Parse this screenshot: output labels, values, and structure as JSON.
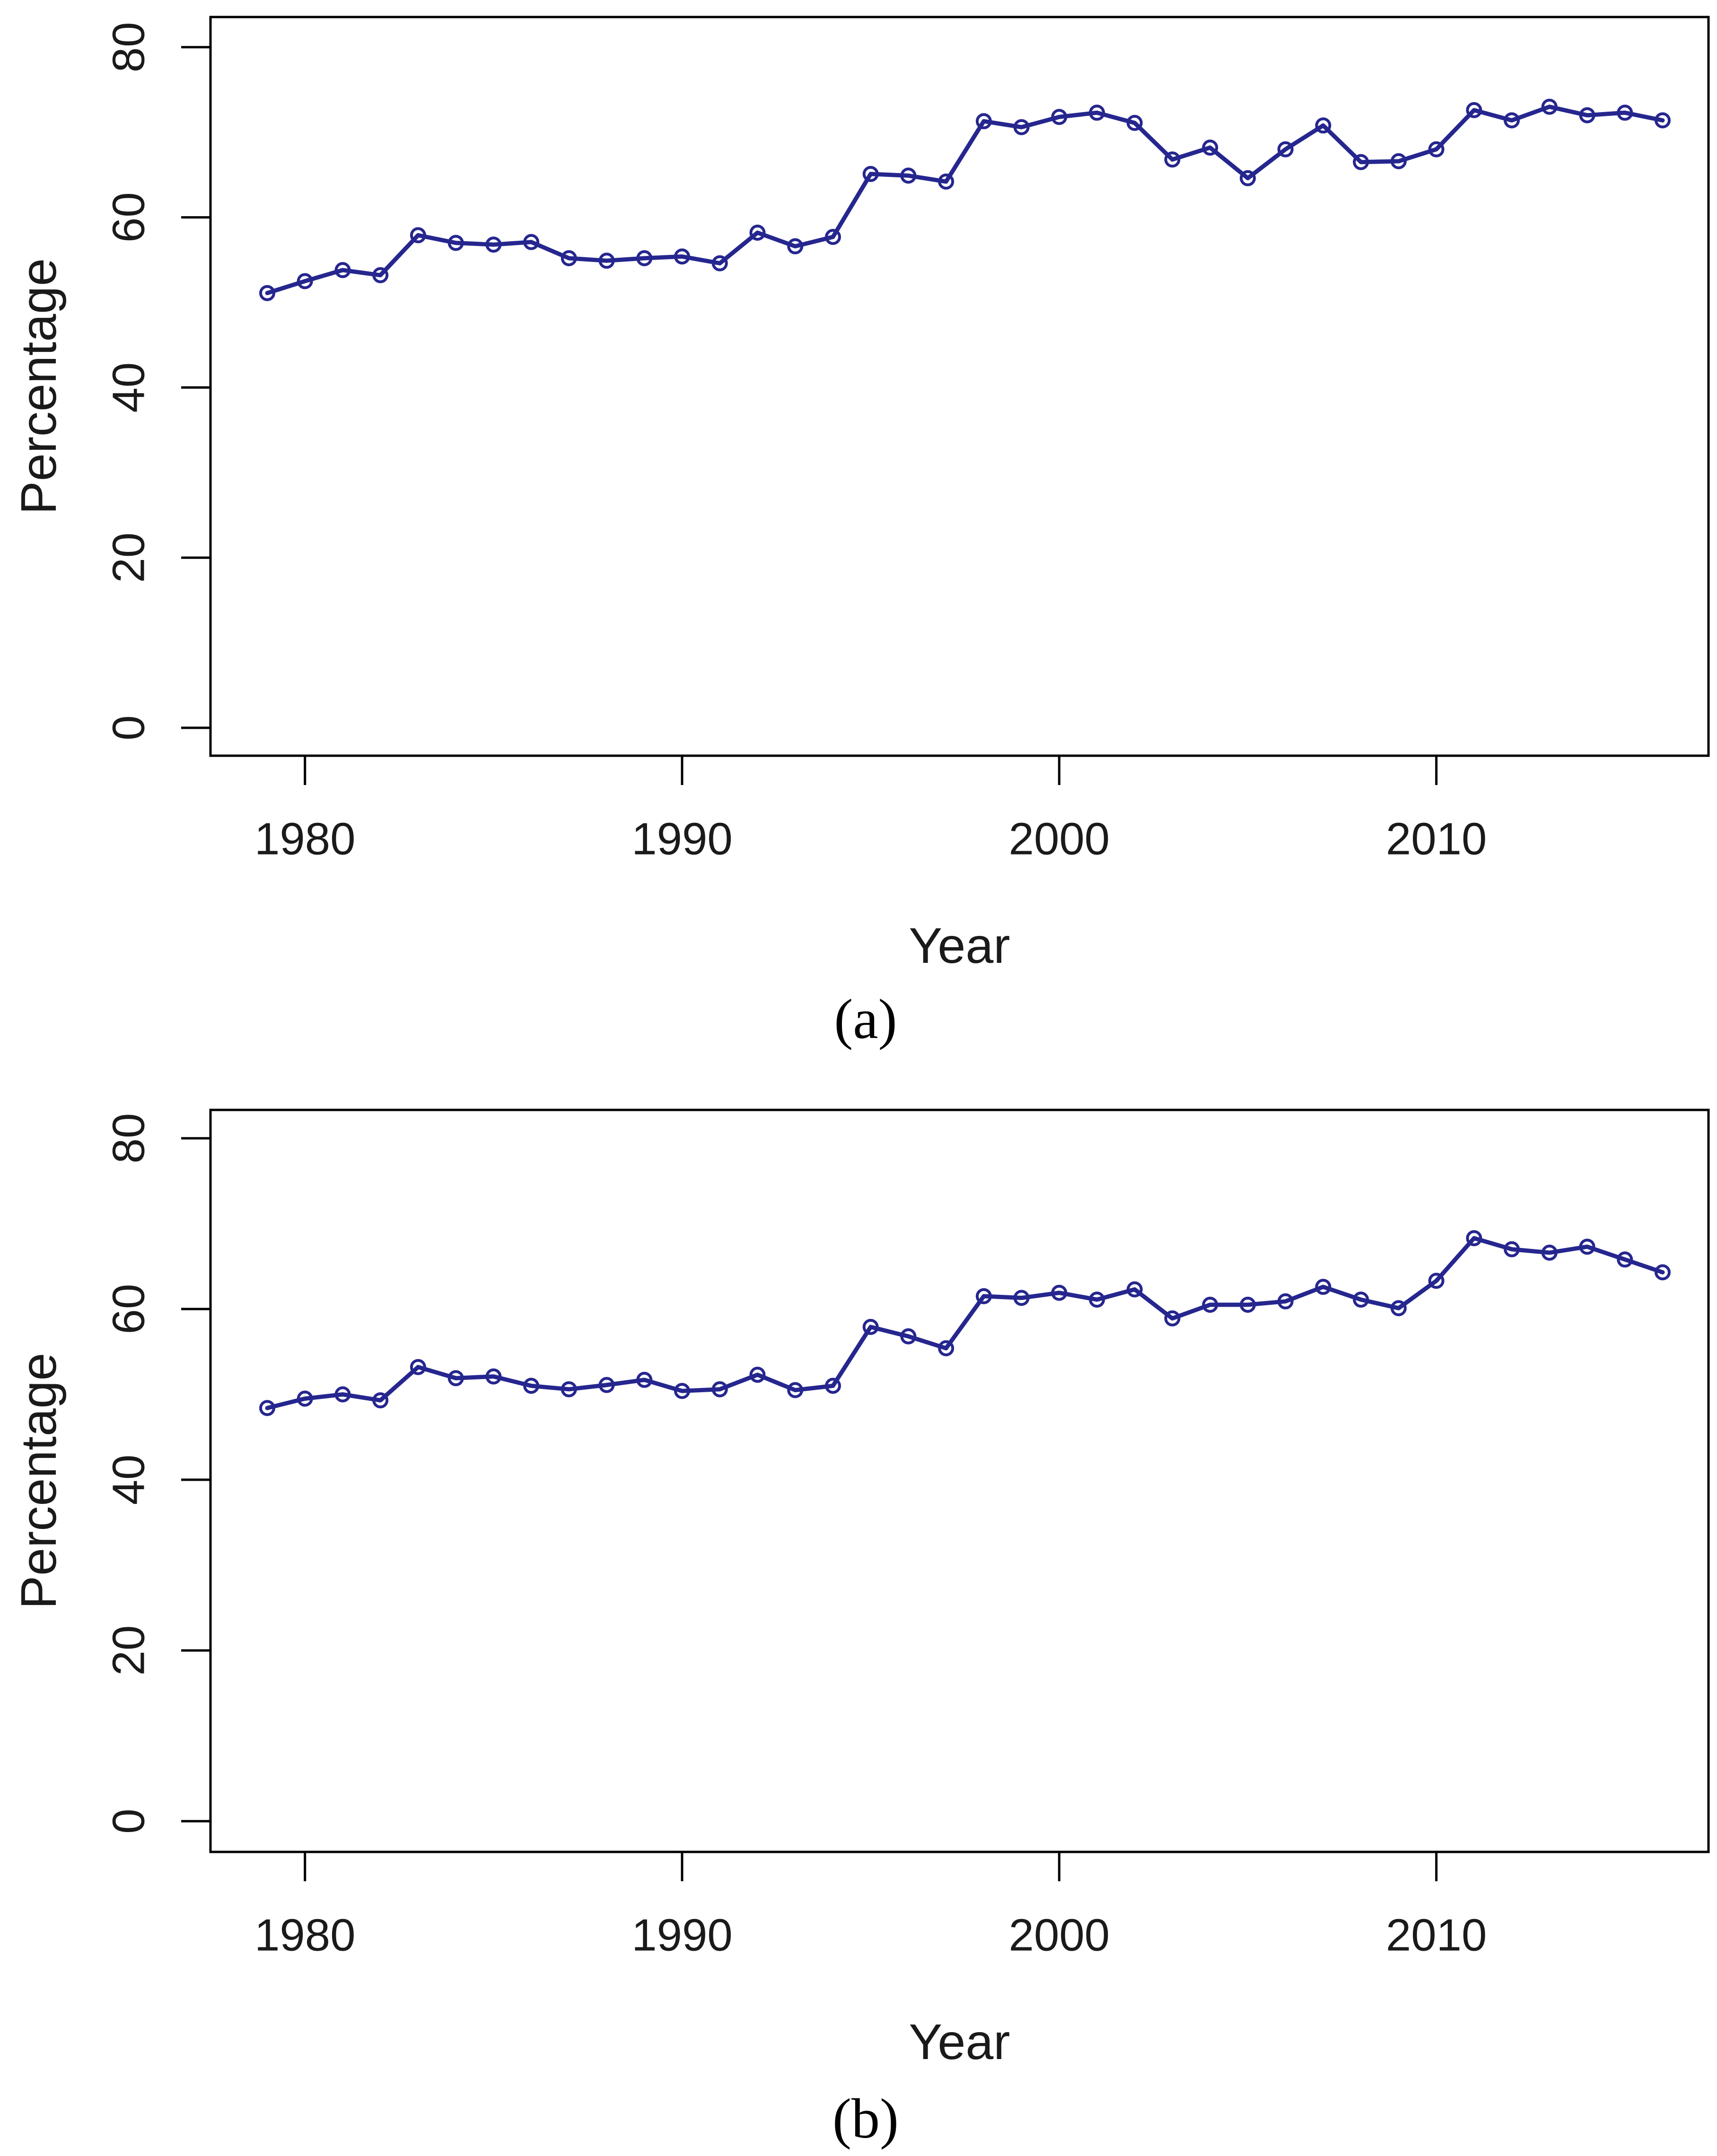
{
  "figure": {
    "background_color": "#ffffff",
    "line_color": "#26268f",
    "axis_color": "#000000",
    "marker_style": "open-circle",
    "panels": [
      {
        "id": "a",
        "caption": "(a)",
        "xlabel": "Year",
        "ylabel": "Percentage",
        "x_tick_labels": [
          "1980",
          "1990",
          "2000",
          "2010"
        ],
        "y_tick_labels": [
          "0",
          "20",
          "40",
          "60",
          "80"
        ]
      },
      {
        "id": "b",
        "caption": "(b)",
        "xlabel": "Year",
        "ylabel": "Percentage",
        "x_tick_labels": [
          "1980",
          "1990",
          "2000",
          "2010"
        ],
        "y_tick_labels": [
          "0",
          "20",
          "40",
          "60",
          "80"
        ]
      }
    ]
  },
  "chart_data": [
    {
      "type": "line",
      "title": "(a)",
      "xlabel": "Year",
      "ylabel": "Percentage",
      "xlim": [
        1977.5,
        2017.5
      ],
      "ylim": [
        0,
        80
      ],
      "x_ticks": [
        1980,
        1990,
        2000,
        2010
      ],
      "y_ticks": [
        0,
        20,
        40,
        60,
        80
      ],
      "grid": false,
      "legend": "none",
      "marker": "open-circle",
      "x": [
        1979,
        1980,
        1981,
        1982,
        1983,
        1984,
        1985,
        1986,
        1987,
        1988,
        1989,
        1990,
        1991,
        1992,
        1993,
        1994,
        1995,
        1996,
        1997,
        1998,
        1999,
        2000,
        2001,
        2002,
        2003,
        2004,
        2005,
        2006,
        2007,
        2008,
        2009,
        2010,
        2011,
        2012,
        2013,
        2014,
        2015,
        2016
      ],
      "y": [
        51.1,
        52.5,
        53.8,
        53.2,
        57.9,
        57.0,
        56.8,
        57.1,
        55.2,
        54.9,
        55.2,
        55.4,
        54.6,
        58.2,
        56.6,
        57.7,
        65.1,
        64.9,
        64.2,
        71.3,
        70.6,
        71.8,
        72.3,
        71.1,
        66.8,
        68.2,
        64.6,
        68.0,
        70.8,
        66.5,
        66.6,
        68.0,
        72.6,
        71.4,
        73.0,
        72.0,
        72.3,
        71.4
      ]
    },
    {
      "type": "line",
      "title": "(b)",
      "xlabel": "Year",
      "ylabel": "Percentage",
      "xlim": [
        1977.5,
        2017.5
      ],
      "ylim": [
        0,
        80
      ],
      "x_ticks": [
        1980,
        1990,
        2000,
        2010
      ],
      "y_ticks": [
        0,
        20,
        40,
        60,
        80
      ],
      "grid": false,
      "legend": "none",
      "marker": "open-circle",
      "x": [
        1979,
        1980,
        1981,
        1982,
        1983,
        1984,
        1985,
        1986,
        1987,
        1988,
        1989,
        1990,
        1991,
        1992,
        1993,
        1994,
        1995,
        1996,
        1997,
        1998,
        1999,
        2000,
        2001,
        2002,
        2003,
        2004,
        2005,
        2006,
        2007,
        2008,
        2009,
        2010,
        2011,
        2012,
        2013,
        2014,
        2015,
        2016
      ],
      "y": [
        48.4,
        49.5,
        50.0,
        49.3,
        53.2,
        51.9,
        52.1,
        51.0,
        50.6,
        51.1,
        51.7,
        50.4,
        50.6,
        52.3,
        50.5,
        51.0,
        57.9,
        56.8,
        55.4,
        61.5,
        61.3,
        61.9,
        61.1,
        62.3,
        58.9,
        60.5,
        60.5,
        60.9,
        62.6,
        61.1,
        60.1,
        63.3,
        68.3,
        67.0,
        66.6,
        67.3,
        65.8,
        64.3
      ]
    }
  ]
}
